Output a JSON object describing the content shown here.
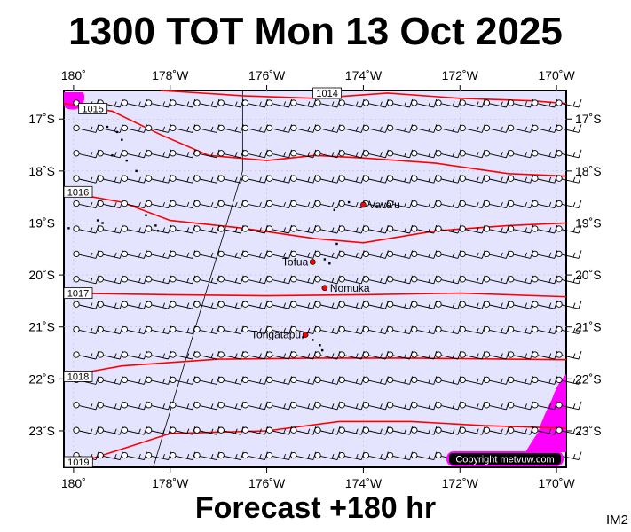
{
  "title": "1300 TOT Mon 13 Oct 2025",
  "footer": "Forecast +180 hr",
  "code": "IM2",
  "copyright": "Copyright metvuw.com",
  "colors": {
    "ocean": "#e4e4ff",
    "isobar": "#ff0000",
    "land_marker": "#ff0000",
    "rain": "#ff00ff",
    "frame": "#000000"
  },
  "map": {
    "lon_min": -180.2,
    "lon_max": -169.8,
    "lat_min": -23.7,
    "lat_max": -16.45,
    "lon_ticks": [
      {
        "lon": -180,
        "label": "180˚"
      },
      {
        "lon": -178,
        "label": "178˚W"
      },
      {
        "lon": -176,
        "label": "176˚W"
      },
      {
        "lon": -174,
        "label": "174˚W"
      },
      {
        "lon": -172,
        "label": "172˚W"
      },
      {
        "lon": -170,
        "label": "170˚W"
      }
    ],
    "lat_ticks": [
      {
        "lat": -17,
        "label": "17˚S"
      },
      {
        "lat": -18,
        "label": "18˚S"
      },
      {
        "lat": -19,
        "label": "19˚S"
      },
      {
        "lat": -20,
        "label": "20˚S"
      },
      {
        "lat": -21,
        "label": "21˚S"
      },
      {
        "lat": -22,
        "label": "22˚S"
      },
      {
        "lat": -23,
        "label": "23˚S"
      }
    ],
    "places": [
      {
        "name": "Vava'u",
        "lon": -174.0,
        "lat": -18.65
      },
      {
        "name": "Tofua",
        "lon": -175.05,
        "lat": -19.75
      },
      {
        "name": "Nomuka",
        "lon": -174.8,
        "lat": -20.25
      },
      {
        "name": "Tongatapu",
        "lon": -175.2,
        "lat": -21.15
      }
    ],
    "isobars": [
      {
        "label": "1014",
        "label_lon": -174.75,
        "label_lat": -16.5,
        "points": [
          [
            -178.2,
            -16.45
          ],
          [
            -176.5,
            -16.55
          ],
          [
            -175.0,
            -16.6
          ],
          [
            -173.5,
            -16.5
          ],
          [
            -172.0,
            -16.6
          ],
          [
            -170.5,
            -16.65
          ],
          [
            -169.8,
            -16.7
          ]
        ]
      },
      {
        "label": "1015",
        "label_lon": -179.6,
        "label_lat": -16.8,
        "points": [
          [
            -180.2,
            -16.7
          ],
          [
            -179.2,
            -16.85
          ],
          [
            -178.2,
            -17.3
          ],
          [
            -177.2,
            -17.7
          ],
          [
            -176.0,
            -17.8
          ],
          [
            -175.0,
            -17.7
          ],
          [
            -174.0,
            -17.75
          ],
          [
            -172.5,
            -17.85
          ],
          [
            -171.0,
            -18.05
          ],
          [
            -169.8,
            -18.1
          ]
        ]
      },
      {
        "label": "1016",
        "label_lon": -180.0,
        "label_lat": -18.4,
        "points": [
          [
            -180.2,
            -18.4
          ],
          [
            -179.0,
            -18.6
          ],
          [
            -178.0,
            -18.95
          ],
          [
            -176.5,
            -19.1
          ],
          [
            -175.0,
            -19.3
          ],
          [
            -174.0,
            -19.38
          ],
          [
            -172.5,
            -19.15
          ],
          [
            -171.0,
            -19.05
          ],
          [
            -169.8,
            -19.0
          ]
        ]
      },
      {
        "label": "1017",
        "label_lon": -180.0,
        "label_lat": -20.35,
        "points": [
          [
            -180.2,
            -20.35
          ],
          [
            -178.0,
            -20.38
          ],
          [
            -176.0,
            -20.4
          ],
          [
            -174.0,
            -20.38
          ],
          [
            -172.0,
            -20.35
          ],
          [
            -169.8,
            -20.42
          ]
        ]
      },
      {
        "label": "1018",
        "label_lon": -180.0,
        "label_lat": -21.95,
        "points": [
          [
            -180.2,
            -21.95
          ],
          [
            -179.0,
            -21.75
          ],
          [
            -177.0,
            -21.62
          ],
          [
            -175.0,
            -21.6
          ],
          [
            -173.0,
            -21.6
          ],
          [
            -171.0,
            -21.62
          ],
          [
            -169.8,
            -21.63
          ]
        ]
      },
      {
        "label": "1019",
        "label_lon": -179.9,
        "label_lat": -23.7,
        "points": [
          [
            -180.2,
            -23.7
          ],
          [
            -179.0,
            -23.35
          ],
          [
            -178.0,
            -23.05
          ],
          [
            -176.0,
            -23.0
          ],
          [
            -174.5,
            -22.82
          ],
          [
            -173.0,
            -22.82
          ],
          [
            -171.5,
            -22.9
          ],
          [
            -169.8,
            -22.95
          ]
        ]
      }
    ]
  }
}
